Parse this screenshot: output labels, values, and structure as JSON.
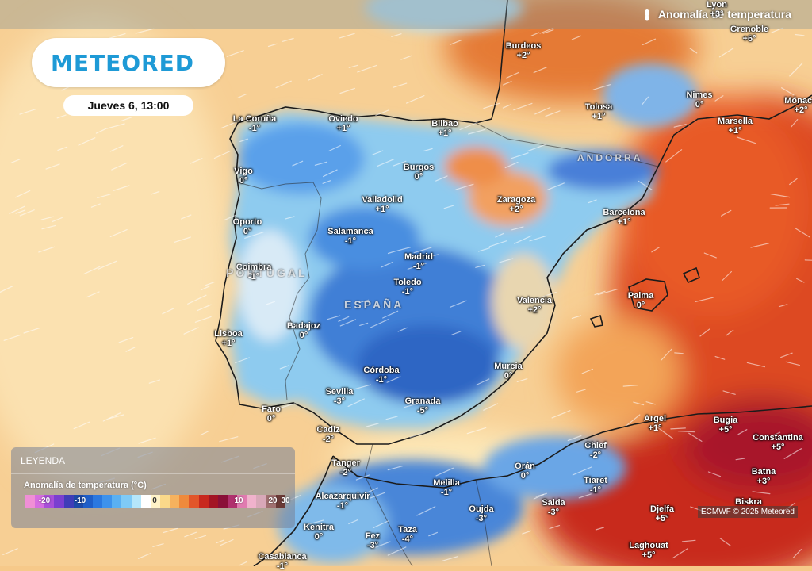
{
  "header": {
    "logo": "METEORED",
    "date": "Jueves 6, 13:00",
    "layer_title": "Anomalía de temperatura"
  },
  "map": {
    "countries": [
      "PORTUGAL",
      "ESPAÑA",
      "ANDORRA"
    ],
    "cities": [
      {
        "name": "La Coruña",
        "value": "-1°"
      },
      {
        "name": "Oviedo",
        "value": "+1°"
      },
      {
        "name": "Bilbao",
        "value": "+1°"
      },
      {
        "name": "Burdeos",
        "value": "+2°"
      },
      {
        "name": "Tolosa",
        "value": "+1°"
      },
      {
        "name": "Nimes",
        "value": "0°"
      },
      {
        "name": "Marsella",
        "value": "+1°"
      },
      {
        "name": "Grenoble",
        "value": "+6°"
      },
      {
        "name": "Lyon",
        "value": "+3°"
      },
      {
        "name": "Mónaco",
        "value": "+2°"
      },
      {
        "name": "Vigo",
        "value": "0°"
      },
      {
        "name": "Burgos",
        "value": "0°"
      },
      {
        "name": "Valladolid",
        "value": "+1°"
      },
      {
        "name": "Zaragoza",
        "value": "+2°"
      },
      {
        "name": "Barcelona",
        "value": "+1°"
      },
      {
        "name": "Oporto",
        "value": "0°"
      },
      {
        "name": "Salamanca",
        "value": "-1°"
      },
      {
        "name": "Madrid",
        "value": "-1°"
      },
      {
        "name": "Coimbra",
        "value": "-1°"
      },
      {
        "name": "Toledo",
        "value": "-1°"
      },
      {
        "name": "Valencia",
        "value": "+2°"
      },
      {
        "name": "Palma",
        "value": "0°"
      },
      {
        "name": "Lisboa",
        "value": "+1°"
      },
      {
        "name": "Badajoz",
        "value": "0°"
      },
      {
        "name": "Córdoba",
        "value": "-1°"
      },
      {
        "name": "Murcia",
        "value": "0°"
      },
      {
        "name": "Sevilla",
        "value": "-3°"
      },
      {
        "name": "Granada",
        "value": "-5°"
      },
      {
        "name": "Faro",
        "value": "0°"
      },
      {
        "name": "Cadiz",
        "value": "-2°"
      },
      {
        "name": "Argel",
        "value": "+1°"
      },
      {
        "name": "Bugia",
        "value": "+5°"
      },
      {
        "name": "Constantina",
        "value": "+5°"
      },
      {
        "name": "Tanger",
        "value": "-2°"
      },
      {
        "name": "Chlef",
        "value": "-2°"
      },
      {
        "name": "Orán",
        "value": "0°"
      },
      {
        "name": "Tiaret",
        "value": "-1°"
      },
      {
        "name": "Melilla",
        "value": "-1°"
      },
      {
        "name": "Batna",
        "value": "+3°"
      },
      {
        "name": "Alcazarquivir",
        "value": "-1°"
      },
      {
        "name": "Saida",
        "value": "-3°"
      },
      {
        "name": "Oujda",
        "value": "-3°"
      },
      {
        "name": "Biskra",
        "value": ""
      },
      {
        "name": "Kenitra",
        "value": "0°"
      },
      {
        "name": "Fez",
        "value": "-3°"
      },
      {
        "name": "Taza",
        "value": "-4°"
      },
      {
        "name": "Djelfa",
        "value": "+5°"
      },
      {
        "name": "Laghouat",
        "value": "+5°"
      },
      {
        "name": "Casablanca",
        "value": "-1°"
      }
    ]
  },
  "legend": {
    "title": "LEYENDA",
    "subtitle": "Anomalía de temperatura (°C)",
    "ticks": [
      "-20",
      "-10",
      "0",
      "10",
      "20",
      "30"
    ],
    "colors": [
      "#f08fd6",
      "#d66ee0",
      "#a84fd8",
      "#7a3fd0",
      "#3f3db8",
      "#1d4aa8",
      "#1e5ec8",
      "#2a78e0",
      "#3d92ec",
      "#5ab0f2",
      "#7fcaf6",
      "#b5e6fa",
      "#ffffff",
      "#fff3c8",
      "#fbd98a",
      "#f6b25e",
      "#ef8a3c",
      "#e2562a",
      "#c8281e",
      "#a31424",
      "#8a0f38",
      "#b0306e",
      "#e07bb0",
      "#f0b2cc",
      "#d8a8b8",
      "#a07070",
      "#6a3a36"
    ]
  },
  "credit": "ECMWF © 2025 Meteored"
}
